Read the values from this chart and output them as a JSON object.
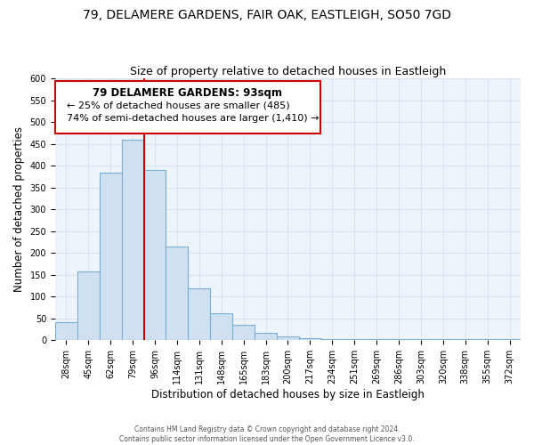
{
  "title": "79, DELAMERE GARDENS, FAIR OAK, EASTLEIGH, SO50 7GD",
  "subtitle": "Size of property relative to detached houses in Eastleigh",
  "xlabel": "Distribution of detached houses by size in Eastleigh",
  "ylabel": "Number of detached properties",
  "bar_labels": [
    "28sqm",
    "45sqm",
    "62sqm",
    "79sqm",
    "96sqm",
    "114sqm",
    "131sqm",
    "148sqm",
    "165sqm",
    "183sqm",
    "200sqm",
    "217sqm",
    "234sqm",
    "251sqm",
    "269sqm",
    "286sqm",
    "303sqm",
    "320sqm",
    "338sqm",
    "355sqm",
    "372sqm"
  ],
  "bar_values": [
    42,
    158,
    385,
    460,
    390,
    215,
    120,
    62,
    35,
    18,
    8,
    5,
    3,
    2,
    2,
    2,
    2,
    2,
    2,
    2,
    2
  ],
  "bar_color": "#cfe0f0",
  "bar_edge_color": "#7aafd4",
  "grid_color": "#d8e4f0",
  "red_line_index": 3,
  "annotation_title": "79 DELAMERE GARDENS: 93sqm",
  "annotation_line1": "← 25% of detached houses are smaller (485)",
  "annotation_line2": "74% of semi-detached houses are larger (1,410) →",
  "ylim": [
    0,
    600
  ],
  "yticks": [
    0,
    50,
    100,
    150,
    200,
    250,
    300,
    350,
    400,
    450,
    500,
    550,
    600
  ],
  "footer_line1": "Contains HM Land Registry data © Crown copyright and database right 2024.",
  "footer_line2": "Contains public sector information licensed under the Open Government Licence v3.0.",
  "title_fontsize": 10,
  "subtitle_fontsize": 9,
  "axis_label_fontsize": 8.5,
  "tick_fontsize": 7,
  "annotation_box_color": "#ffffff",
  "annotation_box_edge": "#cc0000",
  "bg_color": "#eef4fb"
}
